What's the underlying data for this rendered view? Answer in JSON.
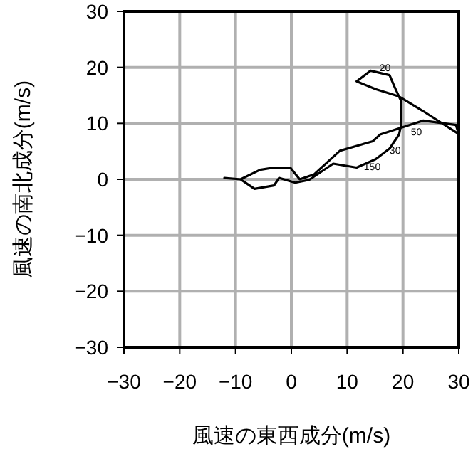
{
  "chart_data": {
    "type": "line",
    "xlabel": "風速の東西成分(m/s)",
    "ylabel": "風速の南北成分(m/s)",
    "x": [
      -12.0,
      -9.1,
      -6.6,
      -3.1,
      -2.2,
      0.7,
      3.2,
      7.5,
      11.7,
      15.1,
      17.6,
      19.3,
      19.7,
      19.7,
      18.5,
      17.6,
      14.2,
      11.7,
      15.1,
      19.3,
      23.6,
      30.0,
      29.5,
      23.6,
      15.9,
      14.6,
      8.7,
      4.1,
      1.5,
      -0.2,
      -3.1,
      -5.6,
      -9.1
    ],
    "values": [
      0.25,
      0,
      -1.7,
      -1.1,
      0.25,
      -0.6,
      -0.1,
      2.8,
      2.1,
      3.6,
      5.5,
      8.0,
      9.9,
      13.9,
      16.5,
      18.6,
      19.4,
      17.5,
      16.1,
      14.8,
      12.2,
      8.1,
      9.7,
      10.5,
      8.0,
      6.8,
      5.1,
      0.9,
      0,
      2.1,
      2.1,
      1.7,
      0
    ],
    "color": "#000000",
    "xlim": [
      -30,
      30
    ],
    "ylim": [
      -30,
      30
    ],
    "xticks": [
      -30,
      -20,
      -10,
      0,
      10,
      20,
      30
    ],
    "yticks": [
      -30,
      -20,
      -10,
      0,
      10,
      20,
      30
    ],
    "grid": true,
    "annotations": [
      {
        "text": "20",
        "x": 15.8,
        "y": 19.8
      },
      {
        "text": "50",
        "x": 21.4,
        "y": 8.4
      },
      {
        "text": "30",
        "x": 17.6,
        "y": 5.1
      },
      {
        "text": "150",
        "x": 13.0,
        "y": 2.1
      }
    ]
  }
}
